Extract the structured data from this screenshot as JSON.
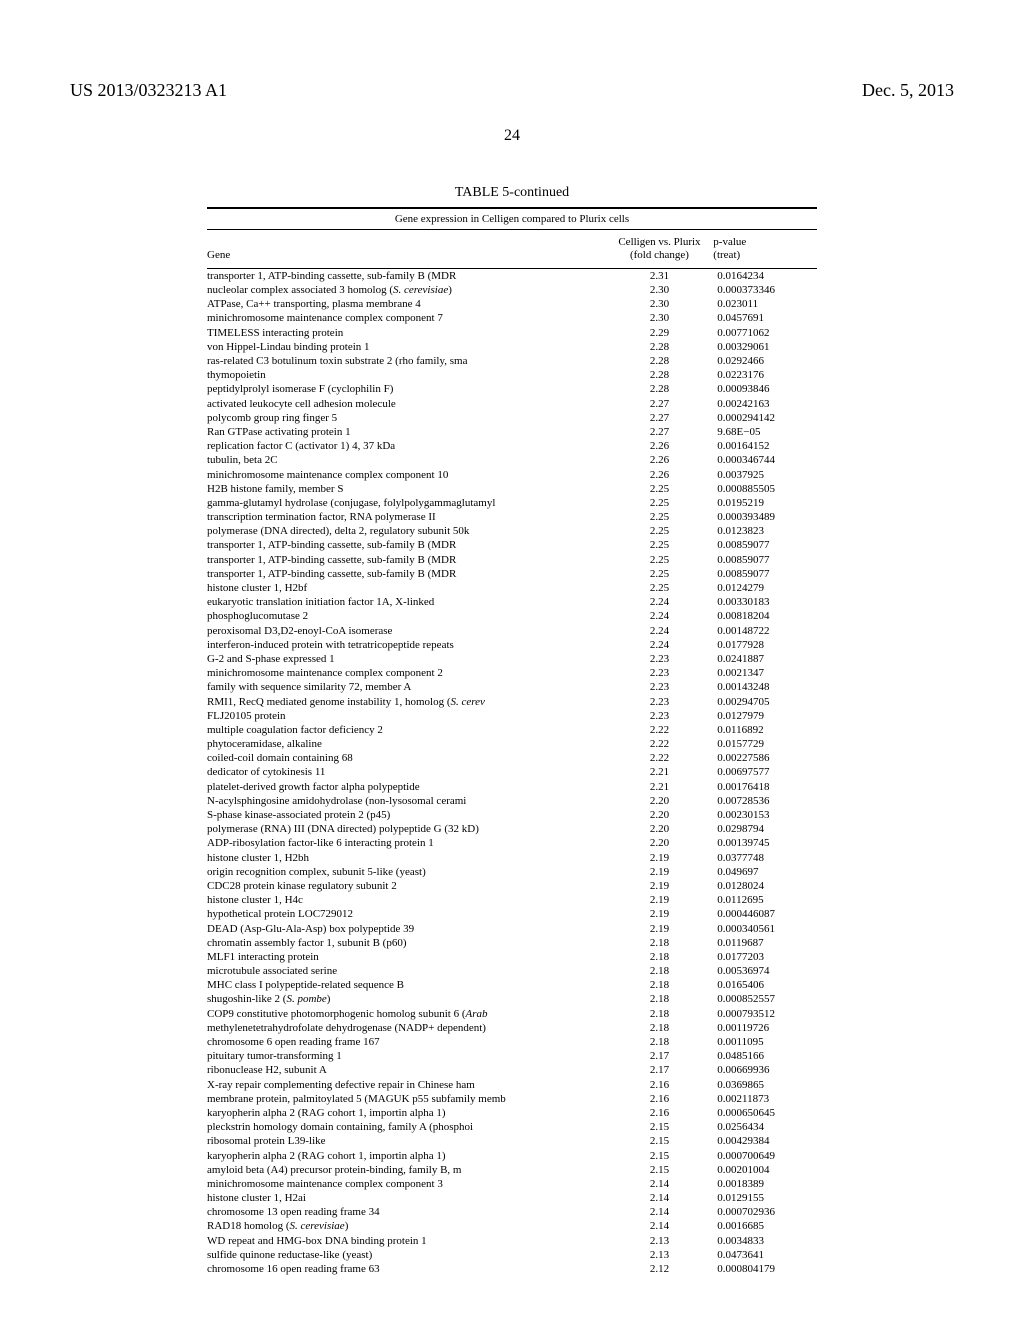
{
  "header": {
    "patent_no": "US 2013/0323213 A1",
    "date": "Dec. 5, 2013",
    "page_num": "24"
  },
  "table": {
    "title": "TABLE 5-continued",
    "caption": "Gene expression in Celligen compared to Plurix cells",
    "columns": {
      "gene": "Gene",
      "fc_line1": "Celligen vs. Plurix",
      "fc_line2": "(fold change)",
      "p_line1": "p-value",
      "p_line2": "(treat)"
    },
    "rows": [
      {
        "gene": "transporter 1, ATP-binding cassette, sub-family B (MDR",
        "fc": "2.31",
        "p": "0.0164234"
      },
      {
        "gene": "nucleolar complex associated 3 homolog (<i>S. cerevisiae</i>)",
        "fc": "2.30",
        "p": "0.000373346"
      },
      {
        "gene": "ATPase, Ca++ transporting, plasma membrane 4",
        "fc": "2.30",
        "p": "0.023011"
      },
      {
        "gene": "minichromosome maintenance complex component 7",
        "fc": "2.30",
        "p": "0.0457691"
      },
      {
        "gene": "TIMELESS interacting protein",
        "fc": "2.29",
        "p": "0.00771062"
      },
      {
        "gene": "von Hippel-Lindau binding protein 1",
        "fc": "2.28",
        "p": "0.00329061"
      },
      {
        "gene": "ras-related C3 botulinum toxin substrate 2 (rho family, sma",
        "fc": "2.28",
        "p": "0.0292466"
      },
      {
        "gene": "thymopoietin",
        "fc": "2.28",
        "p": "0.0223176"
      },
      {
        "gene": "peptidylprolyl isomerase F (cyclophilin F)",
        "fc": "2.28",
        "p": "0.00093846"
      },
      {
        "gene": "activated leukocyte cell adhesion molecule",
        "fc": "2.27",
        "p": "0.00242163"
      },
      {
        "gene": "polycomb group ring finger 5",
        "fc": "2.27",
        "p": "0.000294142"
      },
      {
        "gene": "Ran GTPase activating protein 1",
        "fc": "2.27",
        "p": "9.68E−05"
      },
      {
        "gene": "replication factor C (activator 1) 4, 37 kDa",
        "fc": "2.26",
        "p": "0.00164152"
      },
      {
        "gene": "tubulin, beta 2C",
        "fc": "2.26",
        "p": "0.000346744"
      },
      {
        "gene": "minichromosome maintenance complex component 10",
        "fc": "2.26",
        "p": "0.0037925"
      },
      {
        "gene": "H2B histone family, member S",
        "fc": "2.25",
        "p": "0.000885505"
      },
      {
        "gene": "gamma-glutamyl hydrolase (conjugase, folylpolygammaglutamyl",
        "fc": "2.25",
        "p": "0.0195219"
      },
      {
        "gene": "transcription termination factor, RNA polymerase II",
        "fc": "2.25",
        "p": "0.000393489"
      },
      {
        "gene": "polymerase (DNA directed), delta 2, regulatory subunit 50k",
        "fc": "2.25",
        "p": "0.0123823"
      },
      {
        "gene": "transporter 1, ATP-binding cassette, sub-family B (MDR",
        "fc": "2.25",
        "p": "0.00859077"
      },
      {
        "gene": "transporter 1, ATP-binding cassette, sub-family B (MDR",
        "fc": "2.25",
        "p": "0.00859077"
      },
      {
        "gene": "transporter 1, ATP-binding cassette, sub-family B (MDR",
        "fc": "2.25",
        "p": "0.00859077"
      },
      {
        "gene": "histone cluster 1, H2bf",
        "fc": "2.25",
        "p": "0.0124279"
      },
      {
        "gene": "eukaryotic translation initiation factor 1A, X-linked",
        "fc": "2.24",
        "p": "0.00330183"
      },
      {
        "gene": "phosphoglucomutase 2",
        "fc": "2.24",
        "p": "0.00818204"
      },
      {
        "gene": "peroxisomal D3,D2-enoyl-CoA isomerase",
        "fc": "2.24",
        "p": "0.00148722"
      },
      {
        "gene": "interferon-induced protein with tetratricopeptide repeats",
        "fc": "2.24",
        "p": "0.0177928"
      },
      {
        "gene": "G-2 and S-phase expressed 1",
        "fc": "2.23",
        "p": "0.0241887"
      },
      {
        "gene": "minichromosome maintenance complex component 2",
        "fc": "2.23",
        "p": "0.0021347"
      },
      {
        "gene": "family with sequence similarity 72, member A",
        "fc": "2.23",
        "p": "0.00143248"
      },
      {
        "gene": "RMI1, RecQ mediated genome instability 1, homolog (<i>S. cerev</i>",
        "fc": "2.23",
        "p": "0.00294705"
      },
      {
        "gene": "FLJ20105 protein",
        "fc": "2.23",
        "p": "0.0127979"
      },
      {
        "gene": "multiple coagulation factor deficiency 2",
        "fc": "2.22",
        "p": "0.0116892"
      },
      {
        "gene": "phytoceramidase, alkaline",
        "fc": "2.22",
        "p": "0.0157729"
      },
      {
        "gene": "coiled-coil domain containing 68",
        "fc": "2.22",
        "p": "0.00227586"
      },
      {
        "gene": "dedicator of cytokinesis 11",
        "fc": "2.21",
        "p": "0.00697577"
      },
      {
        "gene": "platelet-derived growth factor alpha polypeptide",
        "fc": "2.21",
        "p": "0.00176418"
      },
      {
        "gene": "N-acylsphingosine amidohydrolase (non-lysosomal cerami",
        "fc": "2.20",
        "p": "0.00728536"
      },
      {
        "gene": "S-phase kinase-associated protein 2 (p45)",
        "fc": "2.20",
        "p": "0.00230153"
      },
      {
        "gene": "polymerase (RNA) III (DNA directed) polypeptide G (32 kD)",
        "fc": "2.20",
        "p": "0.0298794"
      },
      {
        "gene": "ADP-ribosylation factor-like 6 interacting protein 1",
        "fc": "2.20",
        "p": "0.00139745"
      },
      {
        "gene": "histone cluster 1, H2bh",
        "fc": "2.19",
        "p": "0.0377748"
      },
      {
        "gene": "origin recognition complex, subunit 5-like (yeast)",
        "fc": "2.19",
        "p": "0.049697"
      },
      {
        "gene": "CDC28 protein kinase regulatory subunit 2",
        "fc": "2.19",
        "p": "0.0128024"
      },
      {
        "gene": "histone cluster 1, H4c",
        "fc": "2.19",
        "p": "0.0112695"
      },
      {
        "gene": "hypothetical protein LOC729012",
        "fc": "2.19",
        "p": "0.000446087"
      },
      {
        "gene": "DEAD (Asp-Glu-Ala-Asp) box polypeptide 39",
        "fc": "2.19",
        "p": "0.000340561"
      },
      {
        "gene": "chromatin assembly factor 1, subunit B (p60)",
        "fc": "2.18",
        "p": "0.0119687"
      },
      {
        "gene": "MLF1 interacting protein",
        "fc": "2.18",
        "p": "0.0177203"
      },
      {
        "gene": "microtubule associated serine",
        "fc": "2.18",
        "p": "0.00536974"
      },
      {
        "gene": "MHC class I polypeptide-related sequence B",
        "fc": "2.18",
        "p": "0.0165406"
      },
      {
        "gene": "shugoshin-like 2 (<i>S. pombe</i>)",
        "fc": "2.18",
        "p": "0.000852557"
      },
      {
        "gene": "COP9 constitutive photomorphogenic homolog subunit 6 (<i>Arab</i>",
        "fc": "2.18",
        "p": "0.000793512"
      },
      {
        "gene": "methylenetetrahydrofolate dehydrogenase (NADP+ dependent)",
        "fc": "2.18",
        "p": "0.00119726"
      },
      {
        "gene": "chromosome 6 open reading frame 167",
        "fc": "2.18",
        "p": "0.0011095"
      },
      {
        "gene": "pituitary tumor-transforming 1",
        "fc": "2.17",
        "p": "0.0485166"
      },
      {
        "gene": "ribonuclease H2, subunit A",
        "fc": "2.17",
        "p": "0.00669936"
      },
      {
        "gene": "X-ray repair complementing defective repair in Chinese ham",
        "fc": "2.16",
        "p": "0.0369865"
      },
      {
        "gene": "membrane protein, palmitoylated 5 (MAGUK p55 subfamily memb",
        "fc": "2.16",
        "p": "0.00211873"
      },
      {
        "gene": "karyopherin alpha 2 (RAG cohort 1, importin alpha 1)",
        "fc": "2.16",
        "p": "0.000650645"
      },
      {
        "gene": "pleckstrin homology domain containing, family A (phosphoi",
        "fc": "2.15",
        "p": "0.0256434"
      },
      {
        "gene": "ribosomal protein L39-like",
        "fc": "2.15",
        "p": "0.00429384"
      },
      {
        "gene": "karyopherin alpha 2 (RAG cohort 1, importin alpha 1)",
        "fc": "2.15",
        "p": "0.000700649"
      },
      {
        "gene": "amyloid beta (A4) precursor protein-binding, family B, m",
        "fc": "2.15",
        "p": "0.00201004"
      },
      {
        "gene": "minichromosome maintenance complex component 3",
        "fc": "2.14",
        "p": "0.0018389"
      },
      {
        "gene": "histone cluster 1, H2ai",
        "fc": "2.14",
        "p": "0.0129155"
      },
      {
        "gene": "chromosome 13 open reading frame 34",
        "fc": "2.14",
        "p": "0.000702936"
      },
      {
        "gene": "RAD18 homolog (<i>S. cerevisiae</i>)",
        "fc": "2.14",
        "p": "0.0016685"
      },
      {
        "gene": "WD repeat and HMG-box DNA binding protein 1",
        "fc": "2.13",
        "p": "0.0034833"
      },
      {
        "gene": "sulfide quinone reductase-like (yeast)",
        "fc": "2.13",
        "p": "0.0473641"
      },
      {
        "gene": "chromosome 16 open reading frame 63",
        "fc": "2.12",
        "p": "0.000804179"
      }
    ]
  }
}
